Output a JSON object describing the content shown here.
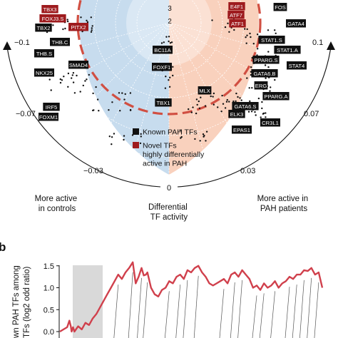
{
  "chart_data": [
    {
      "type": "scatter",
      "panel": "a",
      "colors": {
        "controls_bg": "#c7dcee",
        "pah_bg": "#f9d1bd",
        "known_box": "#111111",
        "novel_box": "#9e1b1e",
        "dashed_ring": "#d14f42",
        "points": "#111111"
      },
      "radial_tick_labels": [
        "3",
        "2"
      ],
      "axis_ticks_left": [
        "−0.1",
        "−0.07",
        "−0.03"
      ],
      "axis_ticks_right": [
        "0.1",
        "0.07",
        "0.03"
      ],
      "center_tick": "0",
      "axis_label": "Differential TF activity",
      "side_labels": {
        "left": "More active in controls",
        "right": "More active in PAH patients"
      },
      "legend": [
        {
          "label": "Known PAH TFs",
          "kind": "known"
        },
        {
          "label": "Novel TFs highly differentially active in PAH",
          "kind": "novel"
        }
      ],
      "tf_labels": [
        {
          "label": "TBX3",
          "kind": "novel"
        },
        {
          "label": "FOXJ3.S",
          "kind": "novel"
        },
        {
          "label": "PITX2",
          "kind": "novel"
        },
        {
          "label": "TBX2",
          "kind": "known"
        },
        {
          "label": "THB.C",
          "kind": "known"
        },
        {
          "label": "THB.S",
          "kind": "known"
        },
        {
          "label": "SMAD4",
          "kind": "known"
        },
        {
          "label": "NKX25",
          "kind": "known"
        },
        {
          "label": "IRF5",
          "kind": "known"
        },
        {
          "label": "FOXM1",
          "kind": "known"
        },
        {
          "label": "BC11A",
          "kind": "known"
        },
        {
          "label": "FOXF1",
          "kind": "known"
        },
        {
          "label": "TBX1",
          "kind": "known"
        },
        {
          "label": "MLX",
          "kind": "known"
        },
        {
          "label": "E4F1",
          "kind": "novel"
        },
        {
          "label": "ATF7",
          "kind": "novel"
        },
        {
          "label": "ATF1",
          "kind": "novel"
        },
        {
          "label": "FOS",
          "kind": "known"
        },
        {
          "label": "GATA4",
          "kind": "known"
        },
        {
          "label": "STAT1.S",
          "kind": "known"
        },
        {
          "label": "STAT1.A",
          "kind": "known"
        },
        {
          "label": "PPARG.S",
          "kind": "known"
        },
        {
          "label": "STAT4",
          "kind": "known"
        },
        {
          "label": "GATA6.B",
          "kind": "known"
        },
        {
          "label": "ERG",
          "kind": "known"
        },
        {
          "label": "PPARG.A",
          "kind": "known"
        },
        {
          "label": "GATA6.S",
          "kind": "known"
        },
        {
          "label": "ELK3",
          "kind": "known"
        },
        {
          "label": "CR3L1",
          "kind": "known"
        },
        {
          "label": "EPAS1",
          "kind": "known"
        }
      ]
    },
    {
      "type": "line",
      "panel": "b",
      "panel_label": "b",
      "ylabel_lines": [
        "wn PAH TFs among",
        "TFs (log2 odd ratio)"
      ],
      "yticks": [
        "1.5",
        "1.0",
        "0.5",
        "0.0"
      ],
      "ylim": [
        -0.05,
        1.7
      ],
      "line_color": "#d0404c",
      "shaded_band_color": "#d9d9d9",
      "x": [
        0,
        5,
        10,
        13,
        15,
        16,
        18,
        20,
        25,
        30,
        35,
        40,
        45,
        50,
        55,
        60,
        65,
        70,
        75,
        80,
        85,
        90,
        95,
        100,
        104,
        108,
        112,
        115,
        118,
        120,
        125,
        130,
        135,
        140,
        145,
        150,
        155,
        160,
        165,
        170,
        175,
        180,
        185,
        190,
        195,
        200,
        205,
        210,
        215,
        220,
        225,
        230,
        235,
        240,
        245,
        250,
        255,
        260,
        265,
        270,
        275,
        280,
        285,
        290,
        295,
        300,
        305,
        310,
        315,
        320,
        325,
        330,
        335,
        340,
        345,
        350,
        355,
        360
      ],
      "values": [
        0.0,
        0.05,
        0.1,
        0.25,
        0.12,
        0.0,
        0.1,
        0.0,
        0.12,
        0.05,
        0.2,
        0.15,
        0.3,
        0.4,
        0.55,
        0.7,
        0.85,
        1.0,
        1.15,
        1.3,
        1.2,
        1.35,
        1.45,
        1.58,
        1.1,
        1.25,
        1.45,
        1.28,
        1.3,
        1.35,
        1.0,
        0.85,
        0.8,
        0.95,
        1.0,
        1.15,
        1.1,
        1.25,
        1.3,
        1.2,
        1.4,
        1.35,
        1.45,
        1.5,
        1.35,
        1.25,
        1.1,
        1.05,
        1.1,
        1.15,
        1.2,
        1.1,
        1.3,
        1.35,
        1.25,
        1.4,
        1.3,
        1.2,
        1.0,
        1.05,
        0.95,
        1.1,
        1.0,
        1.05,
        1.15,
        1.0,
        1.1,
        1.15,
        1.25,
        1.2,
        1.3,
        1.3,
        1.4,
        1.38,
        1.45,
        1.3,
        1.35,
        1.0
      ]
    }
  ]
}
